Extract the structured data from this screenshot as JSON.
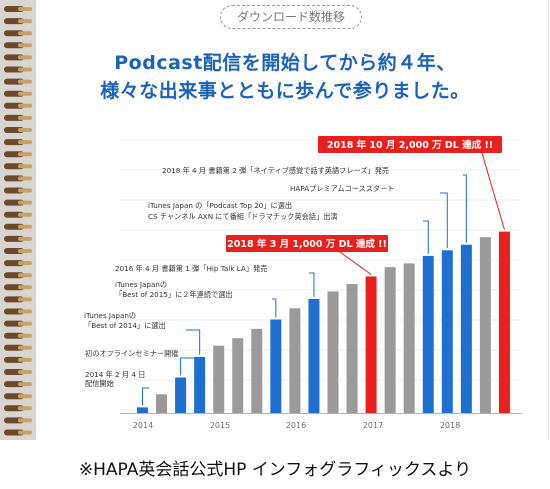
{
  "header": {
    "pill_label": "ダウンロード数推移",
    "headline_line1": "Podcast配信を開始してから約４年、",
    "headline_line2": "様々な出来事とともに歩んで参りました。"
  },
  "caption": "※HAPA英会話公式HP インフォグラフィックスより",
  "colors": {
    "blue": "#1f6fd1",
    "gray": "#9a9a9a",
    "red": "#e8211e",
    "headline": "#1a63b8"
  },
  "chart_data": {
    "type": "bar",
    "x_ticks": [
      "2014",
      "2015",
      "2016",
      "2017",
      "2018"
    ],
    "bars": [
      {
        "color": "blue",
        "value": 3
      },
      {
        "color": "gray",
        "value": 10
      },
      {
        "color": "blue",
        "value": 19
      },
      {
        "color": "blue",
        "value": 30
      },
      {
        "color": "gray",
        "value": 36
      },
      {
        "color": "gray",
        "value": 40
      },
      {
        "color": "gray",
        "value": 45
      },
      {
        "color": "blue",
        "value": 50
      },
      {
        "color": "gray",
        "value": 56
      },
      {
        "color": "blue",
        "value": 61
      },
      {
        "color": "gray",
        "value": 65
      },
      {
        "color": "gray",
        "value": 69
      },
      {
        "color": "red",
        "value": 73
      },
      {
        "color": "gray",
        "value": 78
      },
      {
        "color": "gray",
        "value": 80
      },
      {
        "color": "blue",
        "value": 84
      },
      {
        "color": "blue",
        "value": 87
      },
      {
        "color": "blue",
        "value": 90
      },
      {
        "color": "gray",
        "value": 94
      },
      {
        "color": "red",
        "value": 97
      }
    ],
    "ylim": [
      0,
      100
    ],
    "annotations": [
      {
        "bar": 0,
        "lines": [
          "2014 年 2 月 4 日",
          "配信開始"
        ]
      },
      {
        "bar": 2,
        "lines": [
          "初のオフラインセミナー開催"
        ]
      },
      {
        "bar": 3,
        "lines": [
          "iTunes Japanの",
          "「Best of 2014」に選出"
        ]
      },
      {
        "bar": 7,
        "lines": [
          "iTunes Japanの",
          "「Best of 2015」に２年連続で選出"
        ]
      },
      {
        "bar": 9,
        "lines": [
          "2016 年 4 月 書籍第 1 弾「Hip Talk LA」発売"
        ]
      },
      {
        "bar": 15,
        "lines": [
          "iTunes Japan の「Podcast Top 20」に選出",
          "CS チャンネル AXN にて番組「ドラマチック英会話」出演"
        ]
      },
      {
        "bar": 16,
        "lines": [
          "HAPAプレミアムコーススタート"
        ]
      },
      {
        "bar": 17,
        "lines": [
          "2018 年 4 月 書籍第 2 弾「ネイティブ感覚で話す英語フレーズ」発売"
        ]
      }
    ],
    "highlights": [
      {
        "bar": 12,
        "label": "2018 年 3 月 1,000 万 DL 達成 !!"
      },
      {
        "bar": 19,
        "label": "2018 年 10 月 2,000 万 DL 達成 !!"
      }
    ]
  }
}
